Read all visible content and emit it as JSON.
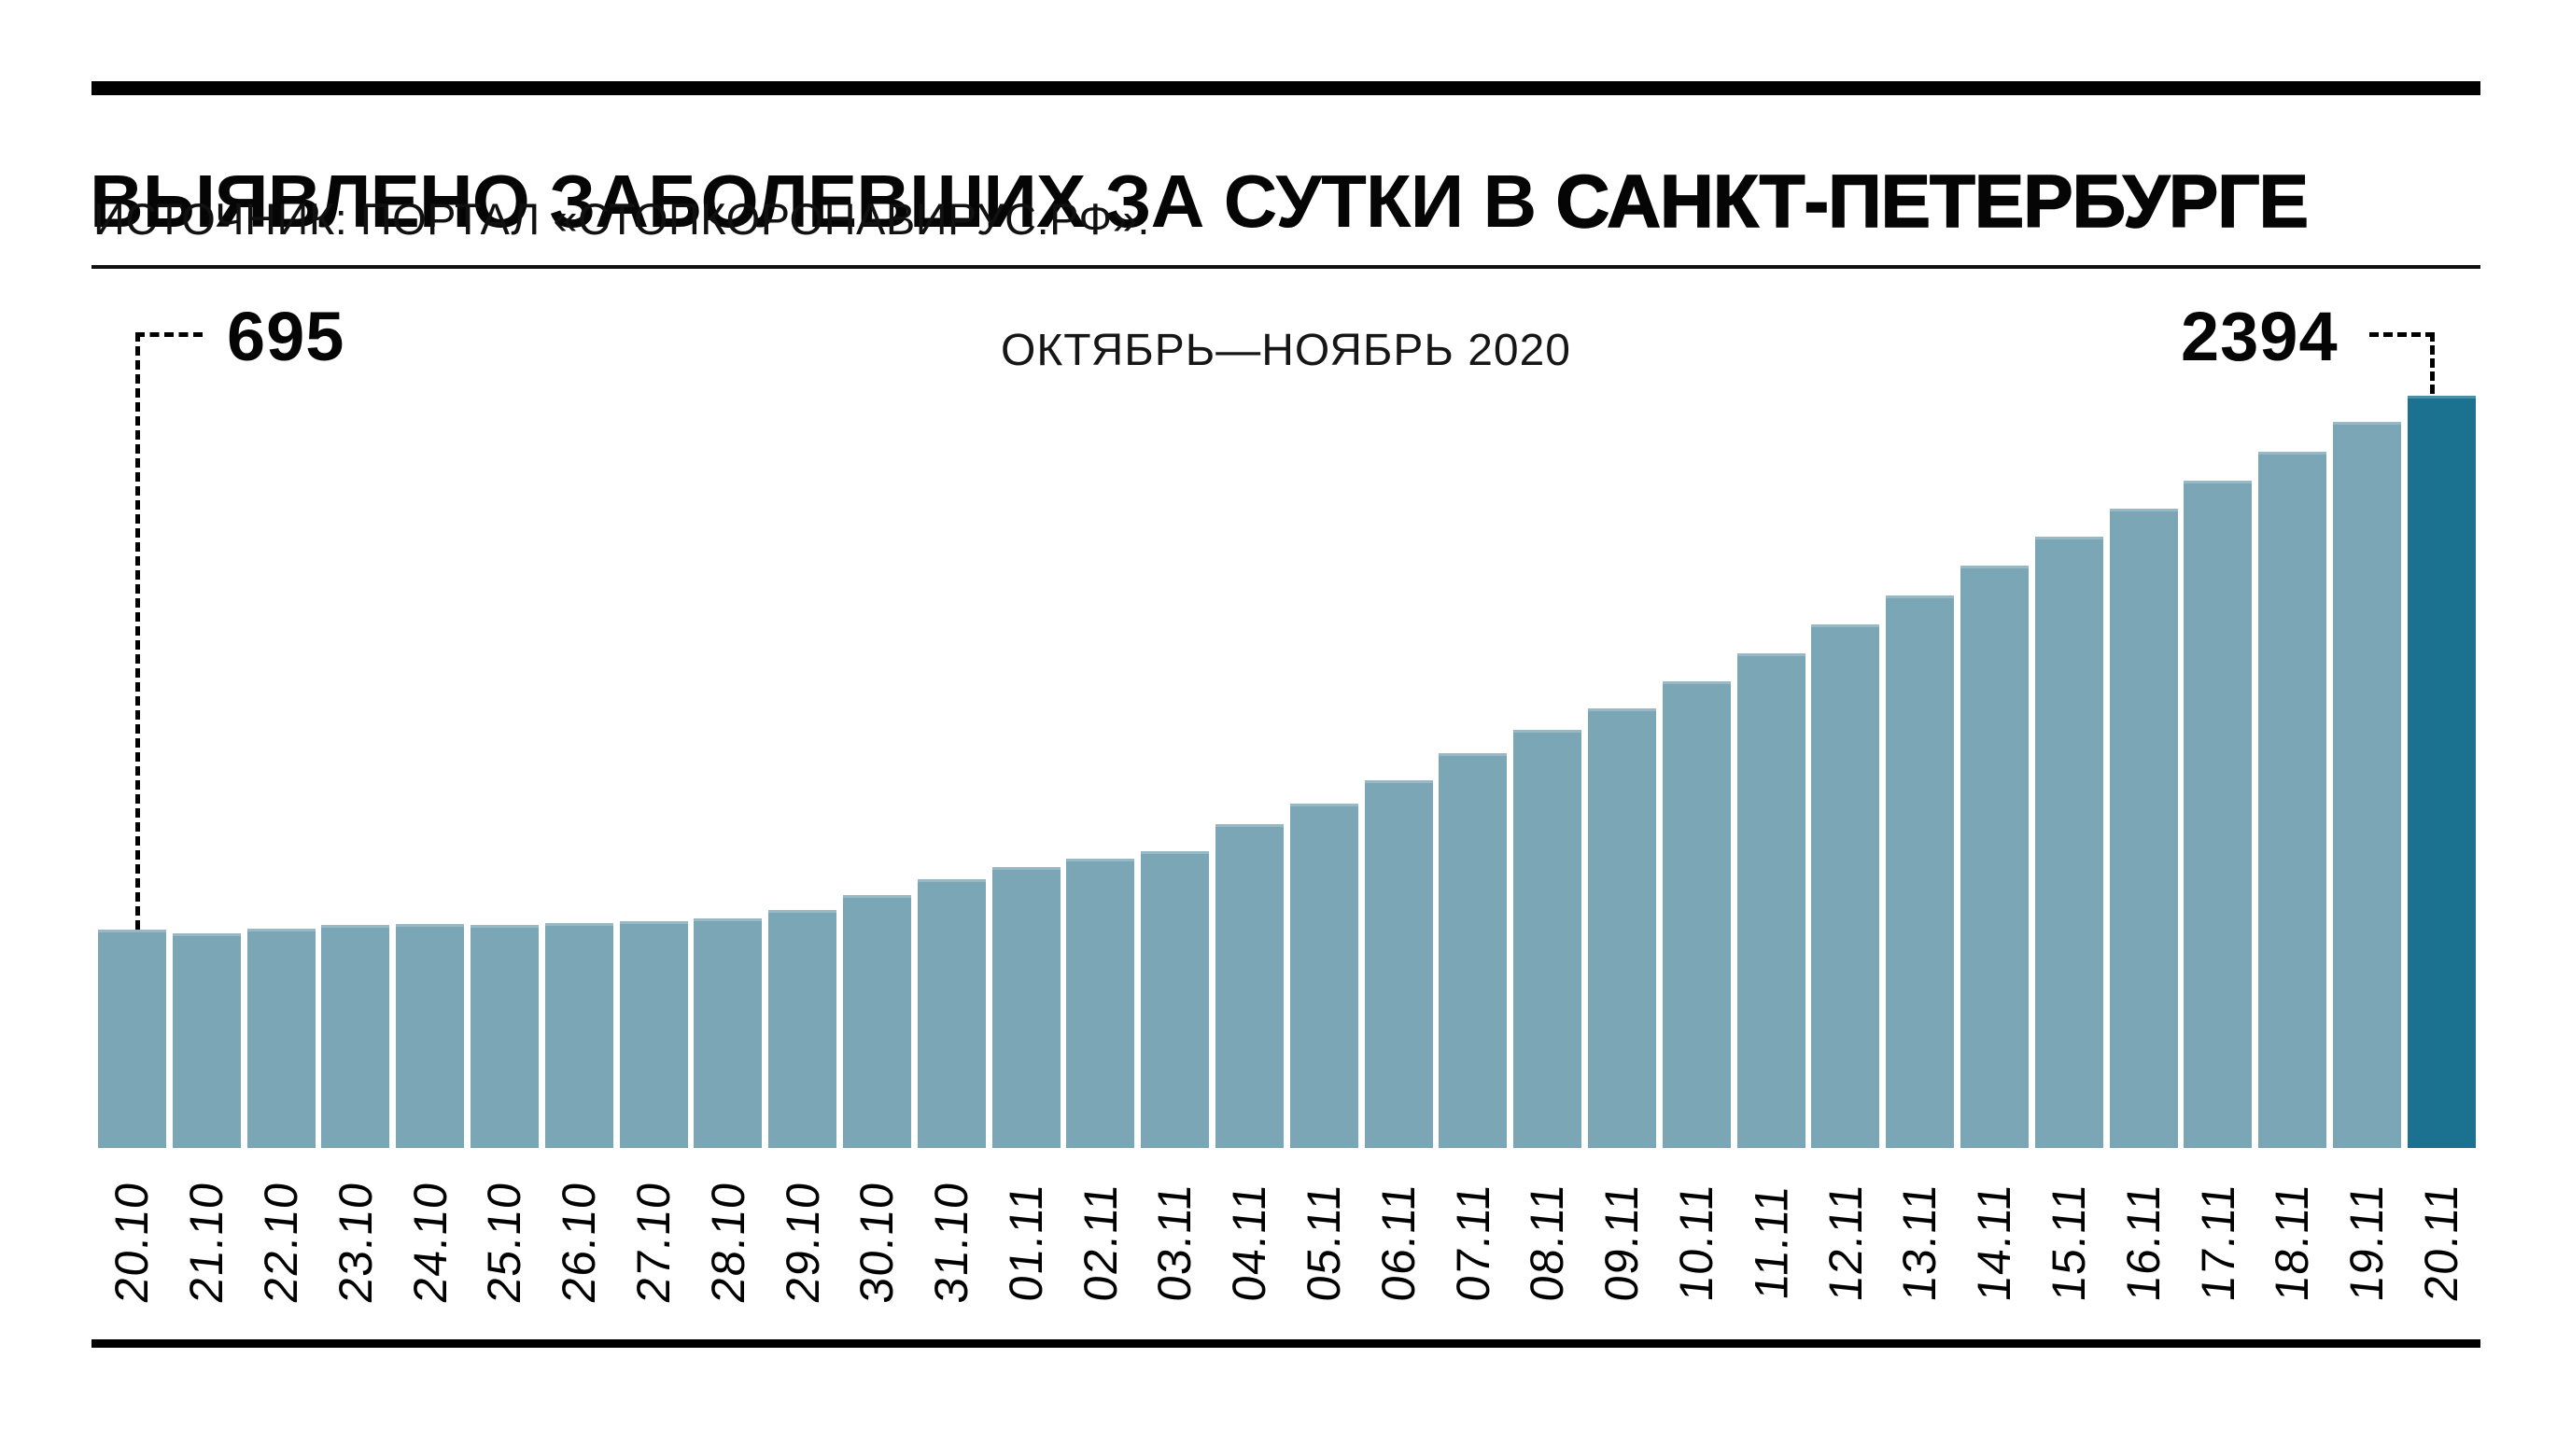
{
  "header": {
    "title_regular": "ВЫЯВЛЕНО ЗАБОЛЕВШИХ ЗА СУТКИ В ",
    "title_bold": "САНКТ-ПЕТЕРБУРГЕ",
    "source": "ИСТОЧНИК: ПОРТАЛ «СТОПКОРОНАВИРУС.РФ»."
  },
  "colors": {
    "bar": "#7aa6b5",
    "bar_highlight": "#1a7190",
    "rule": "#000000",
    "text": "#000000",
    "background": "#ffffff"
  },
  "chart_data": {
    "type": "bar",
    "title": "ВЫЯВЛЕНО ЗАБОЛЕВШИХ ЗА СУТКИ В САНКТ-ПЕТЕРБУРГЕ",
    "source": "ИСТОЧНИК: ПОРТАЛ «СТОПКОРОНАВИРУС.РФ».",
    "period": "ОКТЯБРЬ—НОЯБРЬ 2020",
    "first_bar_label": "695",
    "last_bar_label": "2394",
    "categories": [
      "20.10",
      "21.10",
      "22.10",
      "23.10",
      "24.10",
      "25.10",
      "26.10",
      "27.10",
      "28.10",
      "29.10",
      "30.10",
      "31.10",
      "01.11",
      "02.11",
      "03.11",
      "04.11",
      "05.11",
      "06.11",
      "07.11",
      "08.11",
      "09.11",
      "10.11",
      "11.11",
      "12.11",
      "13.11",
      "14.11",
      "15.11",
      "16.11",
      "17.11",
      "18.11",
      "19.11",
      "20.11"
    ],
    "values": [
      695,
      683,
      699,
      710,
      713,
      711,
      716,
      721,
      730,
      758,
      804,
      856,
      895,
      922,
      944,
      1030,
      1095,
      1170,
      1255,
      1331,
      1400,
      1485,
      1573,
      1667,
      1758,
      1852,
      1945,
      2036,
      2125,
      2216,
      2312,
      2394
    ],
    "highlighted_category": "20.11",
    "xlabel": "",
    "ylabel": "",
    "ylim": [
      0,
      2450
    ],
    "grid": false,
    "legend": false,
    "bar_label_rotation_deg": -90
  }
}
